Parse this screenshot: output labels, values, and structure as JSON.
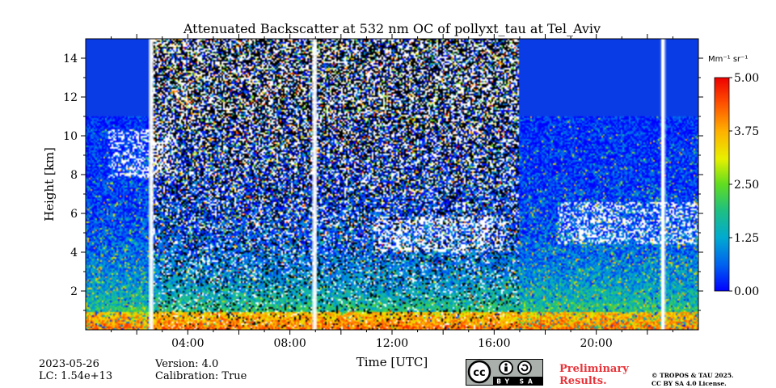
{
  "chart_data": {
    "type": "heatmap",
    "title": "Attenuated Backscatter at 532 nm OC of pollyxt_tau at Tel_Aviv",
    "xlabel": "Time [UTC]",
    "ylabel": "Height [km]",
    "xlim_hours": [
      0,
      24
    ],
    "ylim_km": [
      0,
      15
    ],
    "x_ticks": [
      {
        "hour": 4,
        "label": "04:00"
      },
      {
        "hour": 8,
        "label": "08:00"
      },
      {
        "hour": 12,
        "label": "12:00"
      },
      {
        "hour": 16,
        "label": "16:00"
      },
      {
        "hour": 20,
        "label": "20:00"
      }
    ],
    "y_ticks": [
      {
        "km": 2,
        "label": "2"
      },
      {
        "km": 4,
        "label": "4"
      },
      {
        "km": 6,
        "label": "6"
      },
      {
        "km": 8,
        "label": "8"
      },
      {
        "km": 10,
        "label": "10"
      },
      {
        "km": 12,
        "label": "12"
      },
      {
        "km": 14,
        "label": "14"
      }
    ],
    "colorbar": {
      "unit_label": "Mm⁻¹ sr⁻¹",
      "range": [
        0,
        5
      ],
      "ticks": [
        {
          "value": 0.0,
          "label": "0.00"
        },
        {
          "value": 1.25,
          "label": "1.25"
        },
        {
          "value": 2.5,
          "label": "2.50"
        },
        {
          "value": 3.75,
          "label": "3.75"
        },
        {
          "value": 5.0,
          "label": "5.00"
        }
      ]
    },
    "data_gaps_hours": [
      2.55,
      8.95,
      22.6
    ],
    "noisy_daytime_hours": [
      2.6,
      16.95
    ],
    "cloud_layers": [
      {
        "start_h": 0.9,
        "end_h": 3.5,
        "base_km": 7.8,
        "top_km": 10.3
      },
      {
        "start_h": 11.3,
        "end_h": 16.4,
        "base_km": 4.0,
        "top_km": 5.8
      },
      {
        "start_h": 18.5,
        "end_h": 24.0,
        "base_km": 4.4,
        "top_km": 6.6
      }
    ]
  },
  "footer": {
    "date": "2023-05-26",
    "lc": "LC: 1.54e+13",
    "version": "Version: 4.0",
    "calibration": "Calibration: True",
    "license_badge": "BY SA",
    "preliminary_1": "Preliminary",
    "preliminary_2": "Results.",
    "copyright_1": "© TROPOS & TAU 2025.",
    "copyright_2": "CC BY SA 4.0 License."
  }
}
